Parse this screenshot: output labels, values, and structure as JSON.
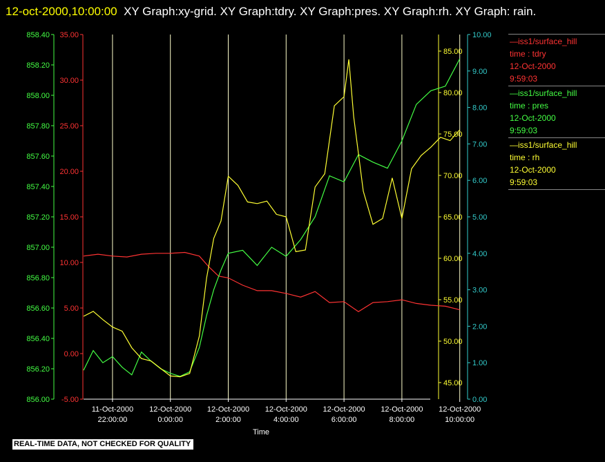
{
  "header": {
    "timestamp": "12-oct-2000,10:00:00",
    "graphs": "XY Graph:xy-grid.  XY Graph:tdry.  XY Graph:pres.  XY Graph:rh.  XY Graph: rain."
  },
  "legend": [
    {
      "line": "—iss1/surface_hill",
      "label": "time : tdry",
      "date": "12-Oct-2000",
      "time": "9:59:03",
      "color": "#ff3333"
    },
    {
      "line": "—iss1/surface_hill",
      "label": "time : pres",
      "date": "12-Oct-2000",
      "time": "9:59:03",
      "color": "#44ff44"
    },
    {
      "line": "—iss1/surface_hill",
      "label": "time : rh",
      "date": "12-Oct-2000",
      "time": "9:59:03",
      "color": "#ffff33"
    }
  ],
  "footer": {
    "disclaimer": "REAL-TIME DATA, NOT CHECKED FOR QUALITY"
  },
  "chart_data": {
    "type": "line",
    "xlabel": "Time",
    "xlim": [
      "11-Oct-2000 21:00",
      "12-Oct-2000 10:00"
    ],
    "x_ticks": [
      {
        "date": "11-Oct-2000",
        "time": "22:00:00"
      },
      {
        "date": "12-Oct-2000",
        "time": "0:00:00"
      },
      {
        "date": "12-Oct-2000",
        "time": "2:00:00"
      },
      {
        "date": "12-Oct-2000",
        "time": "4:00:00"
      },
      {
        "date": "12-Oct-2000",
        "time": "6:00:00"
      },
      {
        "date": "12-Oct-2000",
        "time": "8:00:00"
      },
      {
        "date": "12-Oct-2000",
        "time": "10:00:00"
      }
    ],
    "grid": true,
    "axes": [
      {
        "id": "pres",
        "side": "left",
        "color": "#44ff44",
        "ylim": [
          856.0,
          858.4
        ],
        "ticks": [
          "856.00",
          "856.20",
          "856.40",
          "856.60",
          "856.80",
          "857.00",
          "857.20",
          "857.40",
          "857.60",
          "857.80",
          "858.00",
          "858.20",
          "858.40"
        ]
      },
      {
        "id": "tdry",
        "side": "left",
        "color": "#ff3333",
        "ylim": [
          -5.0,
          35.0
        ],
        "ticks": [
          "-5.00",
          "0.00",
          "5.00",
          "10.00",
          "15.00",
          "20.00",
          "25.00",
          "30.00",
          "35.00"
        ]
      },
      {
        "id": "rh",
        "side": "right",
        "color": "#ffff33",
        "ylim": [
          43.0,
          87.0
        ],
        "ticks": [
          "45.00",
          "50.00",
          "55.00",
          "60.00",
          "65.00",
          "70.00",
          "75.00",
          "80.00",
          "85.00"
        ]
      },
      {
        "id": "rain",
        "side": "right",
        "color": "#33cccc",
        "ylim": [
          0.0,
          10.0
        ],
        "ticks": [
          "0.00",
          "1.00",
          "2.00",
          "3.00",
          "4.00",
          "5.00",
          "6.00",
          "7.00",
          "8.00",
          "9.00",
          "10.00"
        ]
      }
    ],
    "series": [
      {
        "name": "tdry",
        "axis": "tdry",
        "color": "#ff3333",
        "x": [
          "11-Oct-2000 21:00",
          "11-Oct-2000 21:30",
          "11-Oct-2000 22:00",
          "11-Oct-2000 22:30",
          "11-Oct-2000 23:00",
          "11-Oct-2000 23:30",
          "12-Oct-2000 0:00",
          "12-Oct-2000 0:30",
          "12-Oct-2000 1:00",
          "12-Oct-2000 1:20",
          "12-Oct-2000 1:40",
          "12-Oct-2000 2:00",
          "12-Oct-2000 2:30",
          "12-Oct-2000 3:00",
          "12-Oct-2000 3:30",
          "12-Oct-2000 4:00",
          "12-Oct-2000 4:30",
          "12-Oct-2000 5:00",
          "12-Oct-2000 5:30",
          "12-Oct-2000 6:00",
          "12-Oct-2000 6:30",
          "12-Oct-2000 7:00",
          "12-Oct-2000 7:30",
          "12-Oct-2000 8:00",
          "12-Oct-2000 8:30",
          "12-Oct-2000 9:00",
          "12-Oct-2000 9:30",
          "12-Oct-2000 10:00"
        ],
        "y": [
          10.7,
          10.9,
          10.7,
          10.6,
          10.9,
          11.0,
          11.0,
          11.1,
          10.7,
          9.5,
          8.5,
          8.3,
          7.5,
          6.9,
          6.9,
          6.6,
          6.2,
          6.8,
          5.6,
          5.7,
          4.6,
          5.6,
          5.7,
          5.9,
          5.5,
          5.3,
          5.2,
          4.8
        ]
      },
      {
        "name": "pres",
        "axis": "pres",
        "color": "#44ff44",
        "x": [
          "11-Oct-2000 21:00",
          "11-Oct-2000 21:20",
          "11-Oct-2000 21:40",
          "11-Oct-2000 22:00",
          "11-Oct-2000 22:20",
          "11-Oct-2000 22:40",
          "11-Oct-2000 23:00",
          "11-Oct-2000 23:20",
          "11-Oct-2000 23:40",
          "12-Oct-2000 0:00",
          "12-Oct-2000 0:20",
          "12-Oct-2000 0:40",
          "12-Oct-2000 1:00",
          "12-Oct-2000 1:15",
          "12-Oct-2000 1:30",
          "12-Oct-2000 1:45",
          "12-Oct-2000 2:00",
          "12-Oct-2000 2:30",
          "12-Oct-2000 3:00",
          "12-Oct-2000 3:30",
          "12-Oct-2000 4:00",
          "12-Oct-2000 4:30",
          "12-Oct-2000 5:00",
          "12-Oct-2000 5:30",
          "12-Oct-2000 6:00",
          "12-Oct-2000 6:30",
          "12-Oct-2000 7:00",
          "12-Oct-2000 7:30",
          "12-Oct-2000 8:00",
          "12-Oct-2000 8:30",
          "12-Oct-2000 9:00",
          "12-Oct-2000 9:30",
          "12-Oct-2000 10:00"
        ],
        "y": [
          856.19,
          856.32,
          856.24,
          856.28,
          856.21,
          856.16,
          856.31,
          856.25,
          856.2,
          856.17,
          856.15,
          856.18,
          856.34,
          856.55,
          856.72,
          856.85,
          856.96,
          856.98,
          856.88,
          857.0,
          856.94,
          857.05,
          857.2,
          857.47,
          857.43,
          857.61,
          857.56,
          857.52,
          857.7,
          857.94,
          858.03,
          858.06,
          858.24
        ]
      },
      {
        "name": "rh",
        "axis": "rh",
        "color": "#ffff33",
        "x": [
          "11-Oct-2000 21:00",
          "11-Oct-2000 21:20",
          "11-Oct-2000 21:40",
          "11-Oct-2000 22:00",
          "11-Oct-2000 22:20",
          "11-Oct-2000 22:40",
          "11-Oct-2000 23:00",
          "11-Oct-2000 23:20",
          "11-Oct-2000 23:40",
          "12-Oct-2000 0:00",
          "12-Oct-2000 0:20",
          "12-Oct-2000 0:40",
          "12-Oct-2000 1:00",
          "12-Oct-2000 1:15",
          "12-Oct-2000 1:30",
          "12-Oct-2000 1:45",
          "12-Oct-2000 2:00",
          "12-Oct-2000 2:20",
          "12-Oct-2000 2:40",
          "12-Oct-2000 3:00",
          "12-Oct-2000 3:20",
          "12-Oct-2000 3:40",
          "12-Oct-2000 4:00",
          "12-Oct-2000 4:20",
          "12-Oct-2000 4:40",
          "12-Oct-2000 5:00",
          "12-Oct-2000 5:20",
          "12-Oct-2000 5:40",
          "12-Oct-2000 6:00",
          "12-Oct-2000 6:10",
          "12-Oct-2000 6:20",
          "12-Oct-2000 6:40",
          "12-Oct-2000 7:00",
          "12-Oct-2000 7:20",
          "12-Oct-2000 7:40",
          "12-Oct-2000 8:00",
          "12-Oct-2000 8:20",
          "12-Oct-2000 8:40",
          "12-Oct-2000 9:00",
          "12-Oct-2000 9:20",
          "12-Oct-2000 9:40",
          "12-Oct-2000 10:00"
        ],
        "y": [
          53.0,
          53.6,
          52.6,
          51.7,
          51.2,
          49.2,
          47.9,
          47.6,
          46.7,
          45.8,
          45.7,
          46.1,
          50.6,
          57.6,
          62.4,
          64.5,
          69.9,
          68.8,
          66.8,
          66.6,
          66.9,
          65.3,
          65.0,
          60.8,
          61.0,
          68.6,
          70.2,
          78.4,
          79.5,
          84.0,
          77.1,
          68.1,
          64.1,
          64.8,
          69.7,
          64.8,
          70.8,
          72.4,
          73.4,
          74.6,
          74.2,
          75.5
        ]
      },
      {
        "name": "rain",
        "axis": "rain",
        "color": "#33cccc",
        "x": [],
        "y": []
      }
    ]
  }
}
